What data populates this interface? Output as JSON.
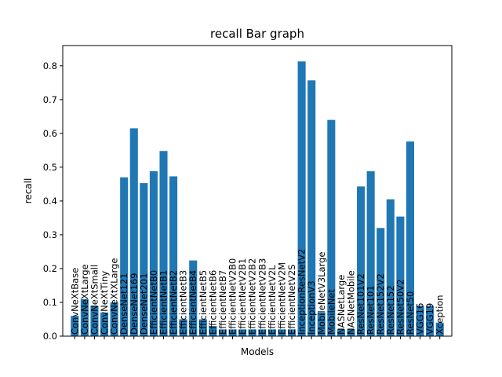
{
  "chart_data": {
    "type": "bar",
    "title": "recall Bar graph",
    "xlabel": "Models",
    "ylabel": "recall",
    "ylim": [
      0,
      0.86
    ],
    "yticks": [
      "0.0",
      "0.1",
      "0.2",
      "0.3",
      "0.4",
      "0.5",
      "0.6",
      "0.7",
      "0.8"
    ],
    "grid": false,
    "bar_color": "#1f77b4",
    "categories": [
      "ConvNeXtBase",
      "ConvNeXtLarge",
      "ConvNeXtSmall",
      "ConvNeXtTiny",
      "ConvNeXtXLarge",
      "DenseNet121",
      "DenseNet169",
      "DenseNet201",
      "EfficientNetB0",
      "EfficientNetB1",
      "EfficientNetB2",
      "EfficientNetB3",
      "EfficientNetB4",
      "EfficientNetB5",
      "EfficientNetB6",
      "EfficientNetB7",
      "EfficientNetV2B0",
      "EfficientNetV2B1",
      "EfficientNetV2B2",
      "EfficientNetV2B3",
      "EfficientNetV2L",
      "EfficientNetV2M",
      "EfficientNetV2S",
      "InceptionResNetV2",
      "InceptionV3",
      "MobileNetV3Large",
      "MobileNet",
      "NASNetLarge",
      "NASNetMobile",
      "ResNet101V2",
      "ResNet101",
      "ResNet152V2",
      "ResNet152",
      "ResNet50V2",
      "ResNet50",
      "VGG16",
      "VGG19",
      "Xception"
    ],
    "values": [
      0.06,
      0.11,
      0.09,
      0.07,
      0.1,
      0.47,
      0.615,
      0.453,
      0.488,
      0.548,
      0.473,
      0.05,
      0.224,
      0.05,
      0.03,
      0.02,
      0.02,
      0.02,
      0.02,
      0.02,
      0.02,
      0.02,
      0.02,
      0.813,
      0.757,
      0.07,
      0.64,
      0.02,
      0.02,
      0.443,
      0.488,
      0.32,
      0.405,
      0.354,
      0.576,
      0.09,
      0.09,
      0.04
    ]
  }
}
